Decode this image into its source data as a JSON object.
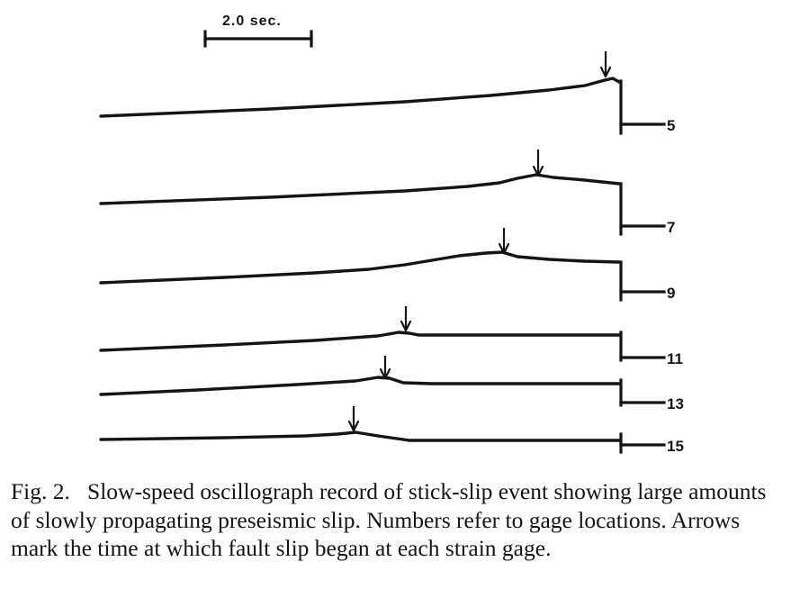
{
  "figure": {
    "time_scale_label": "2.0 sec.",
    "traces": [
      {
        "gage": "5",
        "label": "5"
      },
      {
        "gage": "7",
        "label": "7"
      },
      {
        "gage": "9",
        "label": "9"
      },
      {
        "gage": "11",
        "label": "11"
      },
      {
        "gage": "13",
        "label": "13"
      },
      {
        "gage": "15",
        "label": "15"
      }
    ]
  },
  "caption": {
    "label": "Fig. 2.",
    "text": "Slow-speed oscillograph record of stick-slip event showing large amounts of slowly propagating preseismic slip. Numbers refer to gage locations. Arrows mark the time at which fault slip began at each strain gage."
  }
}
